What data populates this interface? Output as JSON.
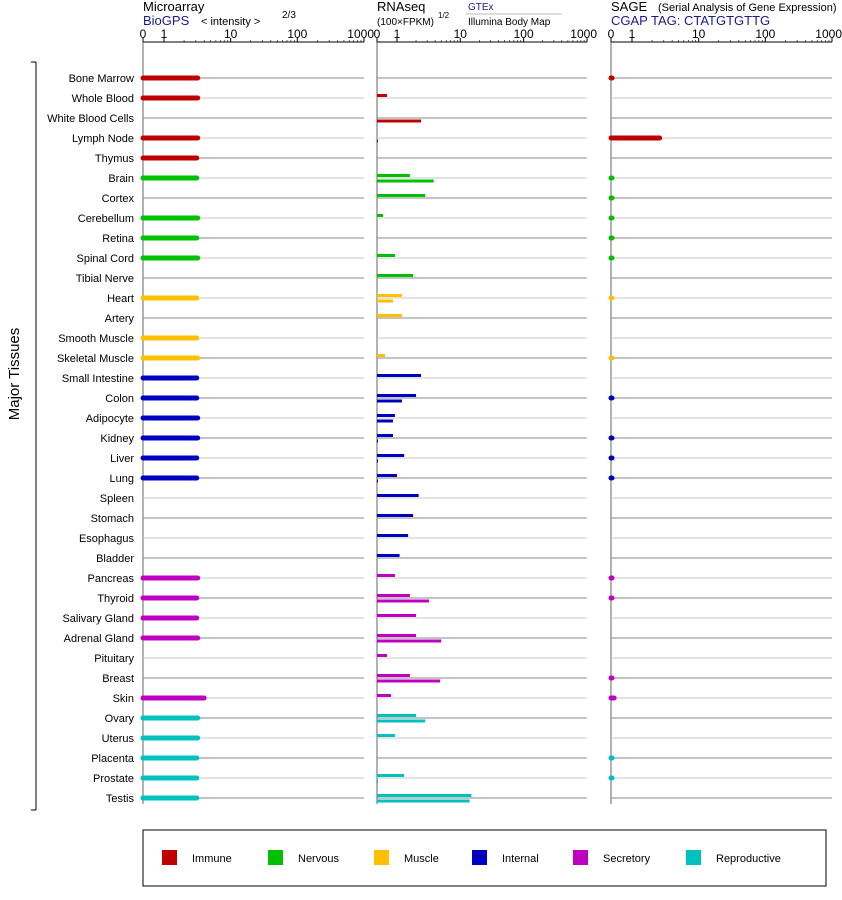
{
  "colors": {
    "Immune": "#c00000",
    "Nervous": "#00c000",
    "Muscle": "#ffc000",
    "Internal": "#0000c0",
    "Secretory": "#c000c0",
    "Reproductive": "#00c0c0"
  },
  "side_label": "Major Tissues",
  "panels": [
    {
      "id": "microarray",
      "header_title": "Microarray",
      "header_source": "BioGPS",
      "header_unit": "< intensity >",
      "header_exponent": "2/3"
    },
    {
      "id": "rnaseq",
      "header_title": "RNAseq",
      "header_unit": "(100×FPKM)",
      "header_exponent": "1/2",
      "legend_top": "GTEx",
      "legend_bottom": "Illumina Body Map"
    },
    {
      "id": "sage",
      "header_title": "SAGE",
      "header_note": "(Serial Analysis of Gene Expression)",
      "header_source": "CGAP  TAG: CTATGTGTTG"
    }
  ],
  "chart_data": {
    "type": "bar",
    "scale": "log",
    "xlim": [
      0,
      1000
    ],
    "tick_labels": [
      "0",
      "1",
      "10",
      "100",
      "1000"
    ],
    "tick_values": [
      0,
      1,
      10,
      100,
      1000
    ],
    "legend_placement": "bottom",
    "legend": [
      "Immune",
      "Nervous",
      "Muscle",
      "Internal",
      "Secretory",
      "Reproductive"
    ],
    "tissues": [
      {
        "name": "Bone Marrow",
        "group": "Immune",
        "microarray": 3.2,
        "gtex": null,
        "ibm": null,
        "sage": 0.05
      },
      {
        "name": "Whole Blood",
        "group": "Immune",
        "microarray": 3.2,
        "gtex": 0.5,
        "ibm": null,
        "sage": null
      },
      {
        "name": "White Blood Cells",
        "group": "Immune",
        "microarray": null,
        "gtex": null,
        "ibm": 2.4,
        "sage": null
      },
      {
        "name": "Lymph Node",
        "group": "Immune",
        "microarray": 3.2,
        "gtex": null,
        "ibm": 0.03,
        "sage": 2.6
      },
      {
        "name": "Thymus",
        "group": "Immune",
        "microarray": 3.1,
        "gtex": null,
        "ibm": null,
        "sage": null
      },
      {
        "name": "Brain",
        "group": "Nervous",
        "microarray": 3.1,
        "gtex": 1.6,
        "ibm": 3.8,
        "sage": 0.02
      },
      {
        "name": "Cortex",
        "group": "Nervous",
        "microarray": null,
        "gtex": 2.8,
        "ibm": null,
        "sage": 0.02
      },
      {
        "name": "Cerebellum",
        "group": "Nervous",
        "microarray": 3.2,
        "gtex": 0.3,
        "ibm": null,
        "sage": 0.02
      },
      {
        "name": "Retina",
        "group": "Nervous",
        "microarray": 3.1,
        "gtex": null,
        "ibm": null,
        "sage": 0.02
      },
      {
        "name": "Spinal Cord",
        "group": "Nervous",
        "microarray": 3.2,
        "gtex": 0.9,
        "ibm": null,
        "sage": 0.02
      },
      {
        "name": "Tibial Nerve",
        "group": "Nervous",
        "microarray": null,
        "gtex": 1.8,
        "ibm": null,
        "sage": null
      },
      {
        "name": "Heart",
        "group": "Muscle",
        "microarray": 3.1,
        "gtex": 1.2,
        "ibm": 0.8,
        "sage": 0.01
      },
      {
        "name": "Artery",
        "group": "Muscle",
        "microarray": null,
        "gtex": 1.2,
        "ibm": null,
        "sage": null
      },
      {
        "name": "Smooth Muscle",
        "group": "Muscle",
        "microarray": 3.1,
        "gtex": null,
        "ibm": null,
        "sage": null
      },
      {
        "name": "Skeletal Muscle",
        "group": "Muscle",
        "microarray": 3.2,
        "gtex": 0.4,
        "ibm": null,
        "sage": 0.01
      },
      {
        "name": "Small Intestine",
        "group": "Internal",
        "microarray": 3.1,
        "gtex": 2.4,
        "ibm": null,
        "sage": null
      },
      {
        "name": "Colon",
        "group": "Internal",
        "microarray": 3.1,
        "gtex": 2.0,
        "ibm": 1.2,
        "sage": 0.03
      },
      {
        "name": "Adipocyte",
        "group": "Internal",
        "microarray": 3.2,
        "gtex": 0.9,
        "ibm": 0.8,
        "sage": null
      },
      {
        "name": "Kidney",
        "group": "Internal",
        "microarray": 3.2,
        "gtex": 0.8,
        "ibm": 0.02,
        "sage": 0.03
      },
      {
        "name": "Liver",
        "group": "Internal",
        "microarray": 3.1,
        "gtex": 1.3,
        "ibm": 0.02,
        "sage": 0.03
      },
      {
        "name": "Lung",
        "group": "Internal",
        "microarray": 3.1,
        "gtex": 1.0,
        "ibm": 0.02,
        "sage": 0.03
      },
      {
        "name": "Spleen",
        "group": "Internal",
        "microarray": null,
        "gtex": 2.2,
        "ibm": null,
        "sage": null
      },
      {
        "name": "Stomach",
        "group": "Internal",
        "microarray": null,
        "gtex": 1.8,
        "ibm": null,
        "sage": null
      },
      {
        "name": "Esophagus",
        "group": "Internal",
        "microarray": null,
        "gtex": 1.5,
        "ibm": null,
        "sage": null
      },
      {
        "name": "Bladder",
        "group": "Internal",
        "microarray": null,
        "gtex": 1.1,
        "ibm": null,
        "sage": null
      },
      {
        "name": "Pancreas",
        "group": "Secretory",
        "microarray": 3.2,
        "gtex": 0.9,
        "ibm": null,
        "sage": 0.03
      },
      {
        "name": "Thyroid",
        "group": "Secretory",
        "microarray": 3.1,
        "gtex": 1.6,
        "ibm": 3.2,
        "sage": 0.03
      },
      {
        "name": "Salivary Gland",
        "group": "Secretory",
        "microarray": 3.1,
        "gtex": 2.0,
        "ibm": null,
        "sage": null
      },
      {
        "name": "Adrenal Gland",
        "group": "Secretory",
        "microarray": 3.2,
        "gtex": 2.0,
        "ibm": 5.0,
        "sage": null
      },
      {
        "name": "Pituitary",
        "group": "Secretory",
        "microarray": null,
        "gtex": 0.5,
        "ibm": null,
        "sage": null
      },
      {
        "name": "Breast",
        "group": "Secretory",
        "microarray": null,
        "gtex": 1.6,
        "ibm": 4.8,
        "sage": 0.03
      },
      {
        "name": "Skin",
        "group": "Secretory",
        "microarray": 4.0,
        "gtex": 0.7,
        "ibm": null,
        "sage": 0.15
      },
      {
        "name": "Ovary",
        "group": "Reproductive",
        "microarray": 3.2,
        "gtex": 2.0,
        "ibm": 2.8,
        "sage": null
      },
      {
        "name": "Uterus",
        "group": "Reproductive",
        "microarray": 3.2,
        "gtex": 0.9,
        "ibm": null,
        "sage": null
      },
      {
        "name": "Placenta",
        "group": "Reproductive",
        "microarray": 3.1,
        "gtex": null,
        "ibm": null,
        "sage": 0.02
      },
      {
        "name": "Prostate",
        "group": "Reproductive",
        "microarray": 3.1,
        "gtex": 1.3,
        "ibm": 0.02,
        "sage": 0.02
      },
      {
        "name": "Testis",
        "group": "Reproductive",
        "microarray": 3.1,
        "gtex": 15,
        "ibm": 14,
        "sage": null
      }
    ]
  }
}
